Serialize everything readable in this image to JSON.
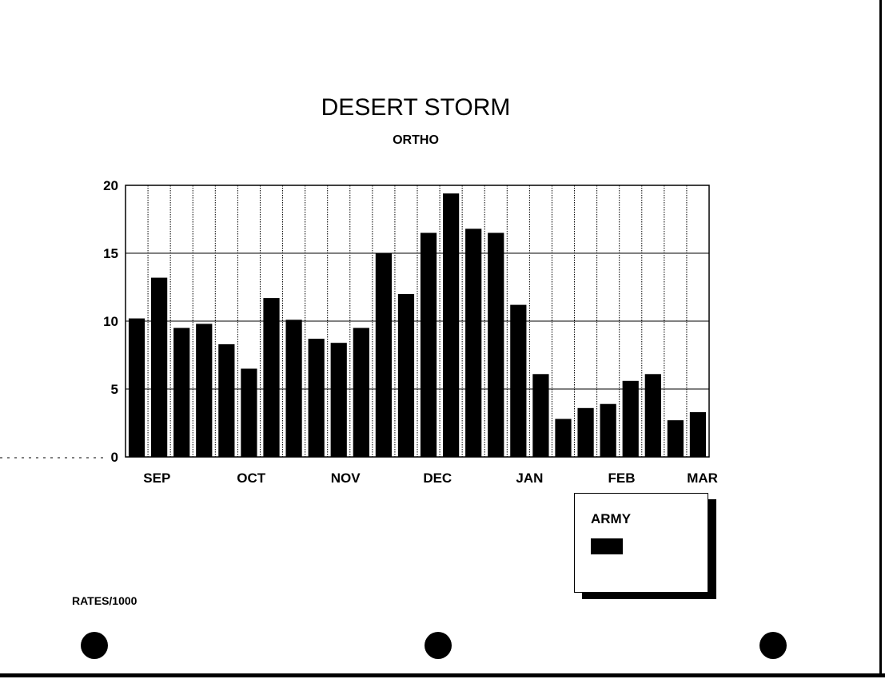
{
  "chart_data": {
    "type": "bar",
    "title": "DESERT STORM",
    "subtitle": "ORTHO",
    "ylabel": "RATES/1000",
    "ylim": [
      0,
      20
    ],
    "yticks": [
      0,
      5,
      10,
      15,
      20
    ],
    "grid": true,
    "month_labels": [
      "SEP",
      "OCT",
      "NOV",
      "DEC",
      "JAN",
      "FEB",
      "MAR"
    ],
    "legend_placement": "bottom-right",
    "series": [
      {
        "name": "ARMY",
        "color": "#000000",
        "values": [
          10.2,
          13.2,
          9.5,
          9.8,
          8.3,
          6.5,
          11.7,
          10.1,
          8.7,
          8.4,
          9.5,
          15.0,
          12.0,
          16.5,
          19.4,
          16.8,
          16.5,
          11.2,
          6.1,
          2.8,
          3.6,
          3.9,
          5.6,
          6.1,
          2.7,
          3.3
        ]
      }
    ]
  }
}
